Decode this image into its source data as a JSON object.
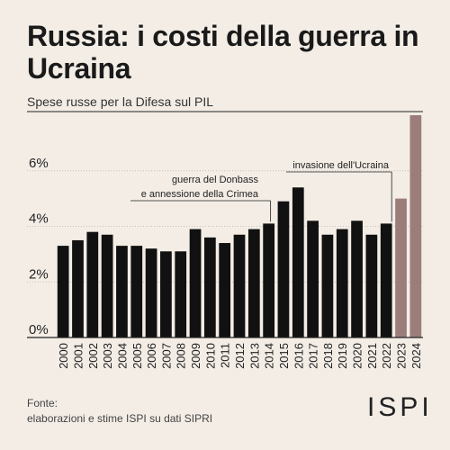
{
  "title": "Russia: i costi della guerra in Ucraina",
  "subtitle": "Spese russe per la Difesa sul PIL",
  "source_line1": "Fonte:",
  "source_line2": "elaborazioni e stime ISPI su dati SIPRI",
  "logo": "ISPI",
  "chart_data": {
    "type": "bar",
    "categories": [
      "2000",
      "2001",
      "2002",
      "2003",
      "2004",
      "2005",
      "2006",
      "2007",
      "2008",
      "2009",
      "2010",
      "2011",
      "2012",
      "2013",
      "2014",
      "2015",
      "2016",
      "2017",
      "2018",
      "2019",
      "2020",
      "2021",
      "2022",
      "2023",
      "2024"
    ],
    "values": [
      3.3,
      3.5,
      3.8,
      3.7,
      3.3,
      3.3,
      3.2,
      3.1,
      3.1,
      3.9,
      3.6,
      3.4,
      3.7,
      3.9,
      4.1,
      4.9,
      5.4,
      4.2,
      3.7,
      3.9,
      4.2,
      3.7,
      4.1,
      5.0,
      8.0
    ],
    "estimated_years": [
      "2023",
      "2024"
    ],
    "colors": {
      "actual": "#111111",
      "estimate": "#9b7e7a",
      "axis": "#222222",
      "grid": "#b9b3ad"
    },
    "ylim": [
      0,
      8
    ],
    "yticks": [
      0,
      2,
      4,
      6
    ],
    "ytick_labels": [
      "0%",
      "2%",
      "4%",
      "6%"
    ],
    "grid": true,
    "annotations": [
      {
        "lines": [
          "guerra del Donbass",
          "e annessione della Crimea"
        ],
        "year": "2014"
      },
      {
        "lines": [
          "invasione dell'Ucraina"
        ],
        "year": "2022"
      }
    ]
  }
}
